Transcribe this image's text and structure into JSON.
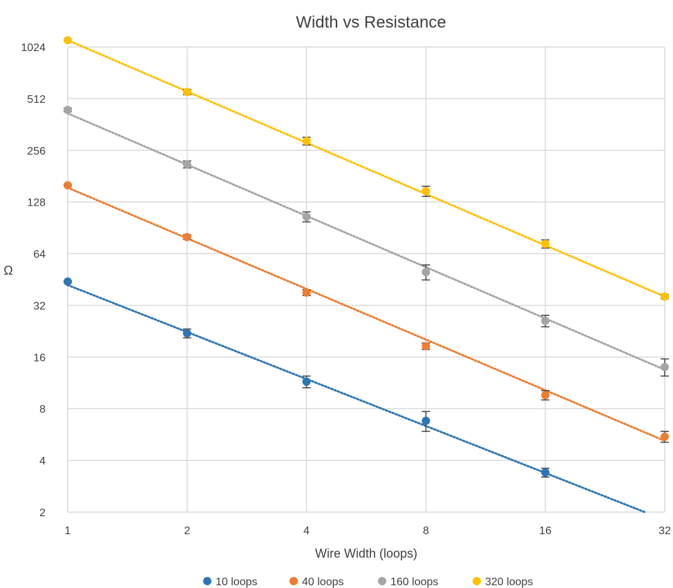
{
  "chart_data": {
    "type": "scatter",
    "title": "Width vs Resistance",
    "xlabel": "Wire Width (loops)",
    "ylabel": "Ω",
    "x_scale": "log2",
    "y_scale": "log2",
    "xlim": [
      1,
      32
    ],
    "ylim": [
      2,
      1024
    ],
    "x_ticks": [
      "1",
      "2",
      "4",
      "8",
      "16",
      "32"
    ],
    "y_ticks": [
      "2",
      "4",
      "8",
      "16",
      "32",
      "64",
      "128",
      "256",
      "512",
      "1024"
    ],
    "grid": true,
    "legend_position": "bottom",
    "trendlines": "dotted",
    "x": [
      1,
      2,
      4,
      8,
      16,
      32
    ],
    "series": [
      {
        "name": "10 loops",
        "color": "#2E75B6",
        "values": [
          44,
          22,
          11.5,
          6.8,
          3.4,
          null
        ],
        "error": [
          0.5,
          1.3,
          0.9,
          0.9,
          0.2,
          null
        ],
        "trend": [
          42,
          1.8
        ]
      },
      {
        "name": "40 loops",
        "color": "#ED7D31",
        "values": [
          160,
          80,
          38,
          18.5,
          9.6,
          5.5
        ],
        "error": [
          2,
          2.5,
          1.5,
          0.8,
          0.6,
          0.4
        ],
        "trend": [
          155,
          5.2
        ]
      },
      {
        "name": "160 loops",
        "color": "#A5A5A5",
        "values": [
          440,
          212,
          105,
          50,
          26,
          14
        ],
        "error": [
          10,
          10,
          7,
          5,
          2,
          1.6
        ],
        "trend": [
          420,
          13.5
        ]
      },
      {
        "name": "320 loops",
        "color": "#FFC000",
        "values": [
          1120,
          560,
          290,
          148,
          73,
          36
        ],
        "error": [
          10,
          20,
          15,
          10,
          4,
          1
        ],
        "trend": [
          1120,
          36
        ]
      }
    ]
  }
}
